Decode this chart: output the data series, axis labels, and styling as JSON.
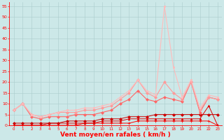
{
  "x": [
    0,
    1,
    2,
    3,
    4,
    5,
    6,
    7,
    8,
    9,
    10,
    11,
    12,
    13,
    14,
    15,
    16,
    17,
    18,
    19,
    20,
    21,
    22,
    23
  ],
  "series": [
    {
      "color": "#ff0000",
      "marker": "+",
      "markersize": 2.5,
      "linewidth": 0.7,
      "y": [
        0,
        0,
        0,
        0,
        0,
        0,
        0,
        0,
        1,
        1,
        1,
        1,
        1,
        1,
        2,
        2,
        2,
        2,
        2,
        2,
        2,
        2,
        2,
        0
      ]
    },
    {
      "color": "#dd0000",
      "marker": "^",
      "markersize": 2.0,
      "linewidth": 0.7,
      "y": [
        0,
        0,
        0,
        0,
        1,
        1,
        1,
        1,
        1,
        1,
        2,
        2,
        2,
        3,
        3,
        3,
        3,
        3,
        3,
        3,
        3,
        3,
        9,
        0
      ]
    },
    {
      "color": "#cc0000",
      "marker": "D",
      "markersize": 2.0,
      "linewidth": 0.7,
      "y": [
        1,
        1,
        1,
        1,
        1,
        1,
        2,
        2,
        2,
        2,
        3,
        3,
        3,
        4,
        4,
        4,
        5,
        5,
        5,
        5,
        5,
        5,
        5,
        5
      ]
    },
    {
      "color": "#ff6666",
      "marker": "D",
      "markersize": 2.0,
      "linewidth": 0.8,
      "y": [
        7,
        10,
        4,
        3,
        4,
        4,
        4,
        5,
        5,
        5,
        6,
        7,
        10,
        12,
        16,
        12,
        11,
        13,
        12,
        11,
        20,
        6,
        13,
        12
      ]
    },
    {
      "color": "#ff9999",
      "marker": "D",
      "markersize": 2.0,
      "linewidth": 0.8,
      "y": [
        7,
        10,
        5,
        4,
        5,
        6,
        6,
        6,
        7,
        7,
        8,
        9,
        12,
        15,
        21,
        15,
        13,
        20,
        15,
        12,
        20,
        7,
        13,
        12
      ]
    },
    {
      "color": "#ffbbbb",
      "marker": "s",
      "markersize": 1.5,
      "linewidth": 0.8,
      "y": [
        7,
        10,
        5,
        4,
        5,
        6,
        7,
        7,
        8,
        8,
        9,
        10,
        13,
        16,
        21,
        16,
        14,
        55,
        27,
        13,
        21,
        8,
        14,
        13
      ]
    }
  ],
  "xlabel": "Vent moyen/en rafales ( km/h )",
  "xlim": [
    -0.5,
    23.5
  ],
  "ylim": [
    0,
    57
  ],
  "yticks": [
    0,
    5,
    10,
    15,
    20,
    25,
    30,
    35,
    40,
    45,
    50,
    55
  ],
  "xticks": [
    0,
    1,
    2,
    3,
    4,
    5,
    6,
    7,
    8,
    9,
    10,
    11,
    12,
    13,
    14,
    15,
    16,
    17,
    18,
    19,
    20,
    21,
    22,
    23
  ],
  "background_color": "#cce8e8",
  "grid_color": "#aacccc",
  "tick_color": "#ff0000",
  "label_color": "#ff0000",
  "axis_color": "#ff0000"
}
